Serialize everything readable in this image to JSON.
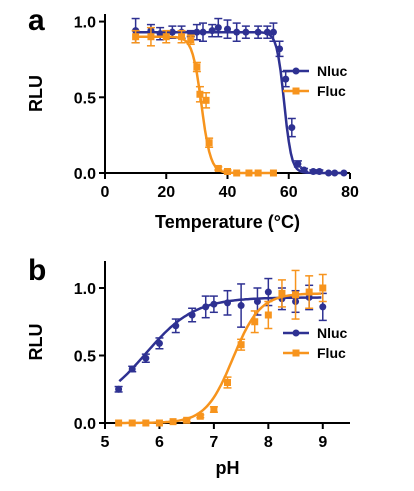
{
  "chart_data": [
    {
      "type": "line",
      "panel_label": "a",
      "xlabel": "Temperature (°C)",
      "ylabel": "RLU",
      "xlim": [
        0,
        80
      ],
      "ylim": [
        0,
        1.05
      ],
      "xticks": [
        "0",
        "20",
        "40",
        "60",
        "80"
      ],
      "yticks": [
        "0.0",
        "0.5",
        "1.0"
      ],
      "legend_position": "right",
      "series": [
        {
          "name": "Nluc",
          "color": "#2e3192",
          "marker": "circle",
          "x": [
            10,
            15,
            18,
            22,
            25,
            28,
            30,
            32,
            35,
            37,
            40,
            43,
            46,
            50,
            53,
            55,
            57,
            59,
            61,
            63,
            65,
            68,
            70,
            73,
            75,
            78
          ],
          "y": [
            0.94,
            0.94,
            0.92,
            0.93,
            0.93,
            0.92,
            0.93,
            0.93,
            0.94,
            0.96,
            0.95,
            0.93,
            0.93,
            0.93,
            0.93,
            0.93,
            0.82,
            0.62,
            0.3,
            0.06,
            0.02,
            0.01,
            0.01,
            0.0,
            0.0,
            0.0
          ],
          "err": [
            0.08,
            0.04,
            0.04,
            0.04,
            0.04,
            0.02,
            0.05,
            0.06,
            0.04,
            0.06,
            0.06,
            0.06,
            0.04,
            0.04,
            0.04,
            0.06,
            0.05,
            0.05,
            0.06,
            0.02,
            0.01,
            0.01,
            0.01,
            0.0,
            0.0,
            0.0
          ],
          "fit": {
            "top": 0.93,
            "bottom": 0.0,
            "mid": 58.5,
            "slope": 1.2
          }
        },
        {
          "name": "Fluc",
          "color": "#f7941d",
          "marker": "square",
          "x": [
            10,
            15,
            20,
            25,
            28,
            30,
            31,
            33,
            34,
            37,
            40,
            43,
            47,
            50,
            55
          ],
          "y": [
            0.9,
            0.9,
            0.9,
            0.9,
            0.88,
            0.7,
            0.52,
            0.48,
            0.2,
            0.03,
            0.01,
            0.0,
            0.0,
            0.0,
            0.0
          ],
          "err": [
            0.04,
            0.06,
            0.04,
            0.04,
            0.03,
            0.03,
            0.05,
            0.05,
            0.03,
            0.01,
            0.01,
            0.0,
            0.0,
            0.0,
            0.0
          ],
          "fit": {
            "top": 0.9,
            "bottom": 0.0,
            "mid": 31.5,
            "slope": 1.5
          }
        }
      ]
    },
    {
      "type": "line",
      "panel_label": "b",
      "xlabel": "pH",
      "ylabel": "RLU",
      "xlim": [
        5,
        9.5
      ],
      "ylim": [
        0,
        1.2
      ],
      "xticks": [
        "5",
        "6",
        "7",
        "8",
        "9"
      ],
      "yticks": [
        "0.0",
        "0.5",
        "1.0"
      ],
      "legend_position": "right",
      "series": [
        {
          "name": "Nluc",
          "color": "#2e3192",
          "marker": "circle",
          "x": [
            5.25,
            5.5,
            5.75,
            6.0,
            6.3,
            6.6,
            6.85,
            7.0,
            7.25,
            7.5,
            7.8,
            8.0,
            8.25,
            8.5,
            8.75,
            9.0
          ],
          "y": [
            0.25,
            0.4,
            0.48,
            0.59,
            0.72,
            0.8,
            0.86,
            0.88,
            0.89,
            0.87,
            0.9,
            0.97,
            0.92,
            0.9,
            0.93,
            0.86
          ],
          "err": [
            0.02,
            0.02,
            0.03,
            0.04,
            0.05,
            0.05,
            0.08,
            0.06,
            0.09,
            0.16,
            0.1,
            0.1,
            0.08,
            0.08,
            0.09,
            0.1
          ],
          "fit": {
            "top": 0.93,
            "bottom": 0.1,
            "mid": 5.75,
            "slope": 0.45
          }
        },
        {
          "name": "Fluc",
          "color": "#f7941d",
          "marker": "square",
          "x": [
            5.25,
            5.5,
            5.75,
            6.0,
            6.25,
            6.5,
            6.75,
            7.0,
            7.25,
            7.5,
            7.75,
            8.0,
            8.25,
            8.5,
            8.75,
            9.0
          ],
          "y": [
            0.0,
            0.0,
            0.0,
            0.0,
            0.01,
            0.02,
            0.05,
            0.1,
            0.3,
            0.58,
            0.75,
            0.8,
            0.96,
            0.95,
            0.97,
            1.0
          ],
          "err": [
            0.0,
            0.0,
            0.0,
            0.0,
            0.0,
            0.01,
            0.01,
            0.02,
            0.04,
            0.04,
            0.08,
            0.1,
            0.1,
            0.18,
            0.12,
            0.1
          ],
          "fit": {
            "top": 0.96,
            "bottom": 0.0,
            "mid": 7.35,
            "slope": 0.25
          }
        }
      ]
    }
  ]
}
